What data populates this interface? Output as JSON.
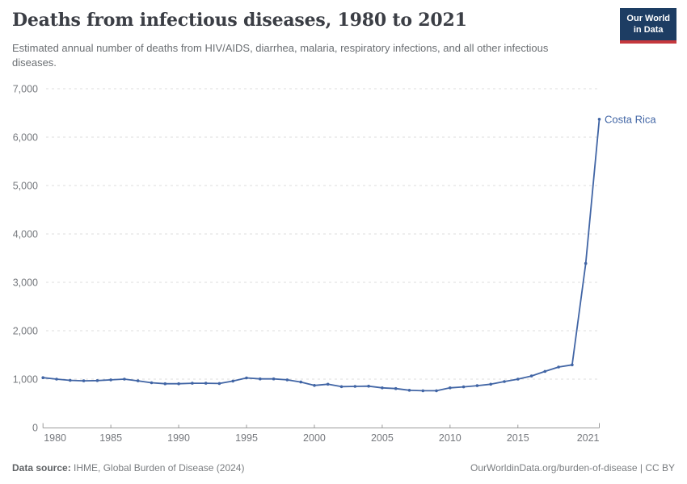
{
  "header": {
    "title": "Deaths from infectious diseases, 1980 to 2021",
    "subtitle": "Estimated annual number of deaths from HIV/AIDS, diarrhea, malaria, respiratory infections, and all other infectious diseases."
  },
  "logo": {
    "line1": "Our World",
    "line2": "in Data"
  },
  "chart_data": {
    "type": "line",
    "title": "Deaths from infectious diseases, 1980 to 2021",
    "entity_label": "Costa Rica",
    "x": [
      1980,
      1981,
      1982,
      1983,
      1984,
      1985,
      1986,
      1987,
      1988,
      1989,
      1990,
      1991,
      1992,
      1993,
      1994,
      1995,
      1996,
      1997,
      1998,
      1999,
      2000,
      2001,
      2002,
      2003,
      2004,
      2005,
      2006,
      2007,
      2008,
      2009,
      2010,
      2011,
      2012,
      2013,
      2014,
      2015,
      2016,
      2017,
      2018,
      2019,
      2020,
      2021
    ],
    "series": [
      {
        "name": "Costa Rica",
        "values": [
          1030,
          1000,
          975,
          965,
          970,
          985,
          1000,
          965,
          925,
          905,
          905,
          915,
          915,
          910,
          960,
          1025,
          1005,
          1005,
          985,
          940,
          870,
          895,
          845,
          850,
          855,
          820,
          805,
          770,
          760,
          760,
          820,
          840,
          865,
          895,
          950,
          1000,
          1065,
          1160,
          1250,
          1295,
          3390,
          6370
        ]
      }
    ],
    "ylim": [
      0,
      7000
    ],
    "xlim": [
      1980,
      2021
    ],
    "yticks": [
      {
        "value": 0,
        "label": "0"
      },
      {
        "value": 1000,
        "label": "1,000"
      },
      {
        "value": 2000,
        "label": "2,000"
      },
      {
        "value": 3000,
        "label": "3,000"
      },
      {
        "value": 4000,
        "label": "4,000"
      },
      {
        "value": 5000,
        "label": "5,000"
      },
      {
        "value": 6000,
        "label": "6,000"
      },
      {
        "value": 7000,
        "label": "7,000"
      }
    ],
    "xticks": [
      {
        "value": 1980,
        "label": "1980"
      },
      {
        "value": 1985,
        "label": "1985"
      },
      {
        "value": 1990,
        "label": "1990"
      },
      {
        "value": 1995,
        "label": "1995"
      },
      {
        "value": 2000,
        "label": "2000"
      },
      {
        "value": 2005,
        "label": "2005"
      },
      {
        "value": 2010,
        "label": "2010"
      },
      {
        "value": 2015,
        "label": "2015"
      },
      {
        "value": 2021,
        "label": "2021"
      }
    ],
    "grid": "horizontal-dashed",
    "legend_position": "end-of-line-label",
    "markers": true
  },
  "footer": {
    "datasource_label": "Data source:",
    "datasource_value": " IHME, Global Burden of Disease (2024)",
    "credit": "OurWorldinData.org/burden-of-disease | CC BY"
  },
  "colors": {
    "line": "#4165a5",
    "grid": "#dcdcdc",
    "axis": "#9b9b9b",
    "tick_text": "#75787d",
    "title_text": "#3b3e45",
    "subtitle_text": "#6b6f73",
    "footer_text": "#7a7d80",
    "logo_bg": "#1d3d63",
    "logo_accent": "#c5383d",
    "background": "#ffffff"
  }
}
